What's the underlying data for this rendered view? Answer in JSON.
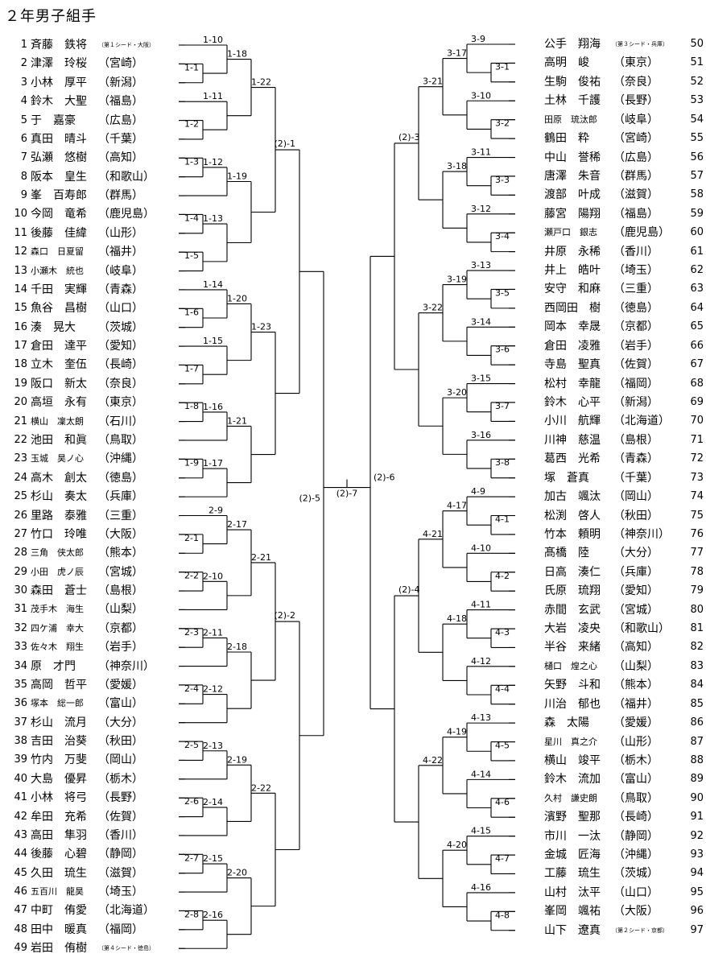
{
  "page": {
    "title": "２年男子組手"
  },
  "left_players": [
    {
      "num": "1",
      "name": "斉藤　鉄将",
      "pref": "",
      "seed": "（第１シード・大阪）"
    },
    {
      "num": "2",
      "name": "津澤　玲桜",
      "pref": "（宮崎）"
    },
    {
      "num": "3",
      "name": "小林　厚平",
      "pref": "（新潟）"
    },
    {
      "num": "4",
      "name": "鈴木　大聖",
      "pref": "（福島）"
    },
    {
      "num": "5",
      "name": "于　嘉豪",
      "pref": "（広島）"
    },
    {
      "num": "6",
      "name": "真田　晴斗",
      "pref": "（千葉）"
    },
    {
      "num": "7",
      "name": "弘瀬　悠樹",
      "pref": "（高知）"
    },
    {
      "num": "8",
      "name": "阪本　皇生",
      "pref": "（和歌山）"
    },
    {
      "num": "9",
      "name": "峯　百寿郎",
      "pref": "（群馬）"
    },
    {
      "num": "10",
      "name": "今岡　竜希",
      "pref": "（鹿児島）"
    },
    {
      "num": "11",
      "name": "後藤　佳緯",
      "pref": "（山形）"
    },
    {
      "num": "12",
      "name": "森口　日夏留",
      "pref": "（福井）",
      "small": true
    },
    {
      "num": "13",
      "name": "小瀬木　統也",
      "pref": "（岐阜）",
      "small": true
    },
    {
      "num": "14",
      "name": "千田　実輝",
      "pref": "（青森）"
    },
    {
      "num": "15",
      "name": "魚谷　昌樹",
      "pref": "（山口）"
    },
    {
      "num": "16",
      "name": "湊　晃大",
      "pref": "（茨城）"
    },
    {
      "num": "17",
      "name": "倉田　達平",
      "pref": "（愛知）"
    },
    {
      "num": "18",
      "name": "立木　奎伍",
      "pref": "（長崎）"
    },
    {
      "num": "19",
      "name": "阪口　新太",
      "pref": "（奈良）"
    },
    {
      "num": "20",
      "name": "高垣　永有",
      "pref": "（東京）"
    },
    {
      "num": "21",
      "name": "横山　凜太朗",
      "pref": "（石川）",
      "small": true
    },
    {
      "num": "22",
      "name": "池田　和眞",
      "pref": "（鳥取）"
    },
    {
      "num": "23",
      "name": "玉城　昊ノ心",
      "pref": "（沖縄）",
      "small": true
    },
    {
      "num": "24",
      "name": "高木　創太",
      "pref": "（徳島）"
    },
    {
      "num": "25",
      "name": "杉山　奏太",
      "pref": "（兵庫）"
    },
    {
      "num": "26",
      "name": "里路　泰雅",
      "pref": "（三重）"
    },
    {
      "num": "27",
      "name": "竹口　玲唯",
      "pref": "（大阪）"
    },
    {
      "num": "28",
      "name": "三角　侠太郎",
      "pref": "（熊本）",
      "small": true
    },
    {
      "num": "29",
      "name": "小田　虎ノ辰",
      "pref": "（宮城）",
      "small": true
    },
    {
      "num": "30",
      "name": "森田　蒼士",
      "pref": "（島根）"
    },
    {
      "num": "31",
      "name": "茂手木　海生",
      "pref": "（山梨）",
      "small": true
    },
    {
      "num": "32",
      "name": "四ケ浦　幸大",
      "pref": "（京都）",
      "small": true
    },
    {
      "num": "33",
      "name": "佐々木　翔生",
      "pref": "（岩手）",
      "small": true
    },
    {
      "num": "34",
      "name": "原　才門",
      "pref": "（神奈川）"
    },
    {
      "num": "35",
      "name": "高岡　哲平",
      "pref": "（愛媛）"
    },
    {
      "num": "36",
      "name": "塚本　総一郎",
      "pref": "（富山）",
      "small": true
    },
    {
      "num": "37",
      "name": "杉山　流月",
      "pref": "（大分）"
    },
    {
      "num": "38",
      "name": "吉田　治葵",
      "pref": "（秋田）"
    },
    {
      "num": "39",
      "name": "竹内　万斐",
      "pref": "（岡山）"
    },
    {
      "num": "40",
      "name": "大島　優昇",
      "pref": "（栃木）"
    },
    {
      "num": "41",
      "name": "小林　将弓",
      "pref": "（長野）"
    },
    {
      "num": "42",
      "name": "牟田　充希",
      "pref": "（佐賀）"
    },
    {
      "num": "43",
      "name": "高田　隼羽",
      "pref": "（香川）"
    },
    {
      "num": "44",
      "name": "後藤　心碧",
      "pref": "（静岡）"
    },
    {
      "num": "45",
      "name": "久田　琉生",
      "pref": "（滋賀）"
    },
    {
      "num": "46",
      "name": "五百川　龍昊",
      "pref": "（埼玉）",
      "small": true
    },
    {
      "num": "47",
      "name": "中町　侑愛",
      "pref": "（北海道）"
    },
    {
      "num": "48",
      "name": "田中　暖真",
      "pref": "（福岡）"
    },
    {
      "num": "49",
      "name": "岩田　侑樹",
      "pref": "",
      "seed": "（第４シード・徳島）"
    }
  ],
  "right_players": [
    {
      "num": "50",
      "name": "公手　翔海",
      "pref": "",
      "seed": "（第３シード・兵庫）"
    },
    {
      "num": "51",
      "name": "高明　峻",
      "pref": "（東京）"
    },
    {
      "num": "52",
      "name": "生駒　俊祐",
      "pref": "（奈良）"
    },
    {
      "num": "53",
      "name": "土林　千護",
      "pref": "（長野）"
    },
    {
      "num": "54",
      "name": "田原　琉汰郎",
      "pref": "（岐阜）",
      "small": true
    },
    {
      "num": "55",
      "name": "鶴田　粋",
      "pref": "（宮崎）"
    },
    {
      "num": "56",
      "name": "中山　誉稀",
      "pref": "（広島）"
    },
    {
      "num": "57",
      "name": "唐澤　朱音",
      "pref": "（群馬）"
    },
    {
      "num": "58",
      "name": "渡部　叶成",
      "pref": "（滋賀）"
    },
    {
      "num": "59",
      "name": "藤宮　陽翔",
      "pref": "（福島）"
    },
    {
      "num": "60",
      "name": "瀬戸口　銀志",
      "pref": "（鹿児島）",
      "small": true
    },
    {
      "num": "61",
      "name": "井原　永稀",
      "pref": "（香川）"
    },
    {
      "num": "62",
      "name": "井上　皓叶",
      "pref": "（埼玉）"
    },
    {
      "num": "63",
      "name": "安守　和麻",
      "pref": "（三重）"
    },
    {
      "num": "64",
      "name": "西岡田　樹",
      "pref": "（徳島）"
    },
    {
      "num": "65",
      "name": "岡本　幸晟",
      "pref": "（京都）"
    },
    {
      "num": "66",
      "name": "倉田　凌雅",
      "pref": "（岩手）"
    },
    {
      "num": "67",
      "name": "寺島　聖真",
      "pref": "（佐賀）"
    },
    {
      "num": "68",
      "name": "松村　幸龍",
      "pref": "（福岡）"
    },
    {
      "num": "69",
      "name": "鈴木　心平",
      "pref": "（新潟）"
    },
    {
      "num": "70",
      "name": "小川　航輝",
      "pref": "（北海道）"
    },
    {
      "num": "71",
      "name": "川神　慈温",
      "pref": "（島根）"
    },
    {
      "num": "72",
      "name": "葛西　光希",
      "pref": "（青森）"
    },
    {
      "num": "73",
      "name": "塚　蒼真",
      "pref": "（千葉）"
    },
    {
      "num": "74",
      "name": "加古　颯汰",
      "pref": "（岡山）"
    },
    {
      "num": "75",
      "name": "松渕　啓人",
      "pref": "（秋田）"
    },
    {
      "num": "76",
      "name": "竹本　頼明",
      "pref": "（神奈川）"
    },
    {
      "num": "77",
      "name": "髙橋　陸",
      "pref": "（大分）"
    },
    {
      "num": "78",
      "name": "日高　湊仁",
      "pref": "（兵庫）"
    },
    {
      "num": "79",
      "name": "氏原　琉翔",
      "pref": "（愛知）"
    },
    {
      "num": "80",
      "name": "赤間　玄武",
      "pref": "（宮城）"
    },
    {
      "num": "81",
      "name": "大岩　凌央",
      "pref": "（和歌山）"
    },
    {
      "num": "82",
      "name": "半谷　来緒",
      "pref": "（高知）"
    },
    {
      "num": "83",
      "name": "樋口　煌之心",
      "pref": "（山梨）",
      "small": true
    },
    {
      "num": "84",
      "name": "矢野　斗和",
      "pref": "（熊本）"
    },
    {
      "num": "85",
      "name": "川治　郁也",
      "pref": "（福井）"
    },
    {
      "num": "86",
      "name": "森　太陽",
      "pref": "（愛媛）"
    },
    {
      "num": "87",
      "name": "星川　真之介",
      "pref": "（山形）",
      "small": true
    },
    {
      "num": "88",
      "name": "横山　竣平",
      "pref": "（栃木）"
    },
    {
      "num": "89",
      "name": "鈴木　流加",
      "pref": "（富山）"
    },
    {
      "num": "90",
      "name": "久村　謙史朗",
      "pref": "（鳥取）",
      "small": true
    },
    {
      "num": "91",
      "name": "濱野　聖那",
      "pref": "（長崎）"
    },
    {
      "num": "92",
      "name": "市川　一汰",
      "pref": "（静岡）"
    },
    {
      "num": "93",
      "name": "金城　匠海",
      "pref": "（沖縄）"
    },
    {
      "num": "94",
      "name": "工藤　琉生",
      "pref": "（茨城）"
    },
    {
      "num": "95",
      "name": "山村　汰平",
      "pref": "（山口）"
    },
    {
      "num": "96",
      "name": "峯岡　颯祐",
      "pref": "（大阪）"
    },
    {
      "num": "97",
      "name": "山下　遼真",
      "pref": "",
      "seed": "（第２シード・京都）"
    }
  ],
  "brackets": {
    "top_left": {
      "r1": [
        "1-1",
        "1-2",
        "1-3",
        "1-4",
        "1-5",
        "1-6",
        "1-7",
        "1-8",
        "1-9"
      ],
      "r2": [
        "1-10",
        "1-11",
        "1-12",
        "1-13",
        "1-14",
        "1-15",
        "1-16",
        "1-17"
      ],
      "r3": [
        "1-18",
        "1-19",
        "1-20",
        "1-21"
      ],
      "r4": [
        "1-22",
        "1-23"
      ],
      "r5": "(2)-1"
    },
    "bottom_left": {
      "r1": [
        "2-1",
        "2-2",
        "2-3",
        "2-4",
        "2-5",
        "2-6",
        "2-7",
        "2-8"
      ],
      "r2": [
        "2-9",
        "2-10",
        "2-11",
        "2-12",
        "2-13",
        "2-14",
        "2-15",
        "2-16"
      ],
      "r3": [
        "2-17",
        "2-18",
        "2-19",
        "2-20"
      ],
      "r4": [
        "2-21",
        "2-22"
      ],
      "r5": "(2)-2"
    },
    "top_right": {
      "r1": [
        "3-1",
        "3-2",
        "3-3",
        "3-4",
        "3-5",
        "3-6",
        "3-7",
        "3-8"
      ],
      "r2": [
        "3-9",
        "3-10",
        "3-11",
        "3-12",
        "3-13",
        "3-14",
        "3-15",
        "3-16"
      ],
      "r3": [
        "3-17",
        "3-18",
        "3-19",
        "3-20"
      ],
      "r4": [
        "3-21",
        "3-22"
      ],
      "r5": "(2)-3"
    },
    "bottom_right": {
      "r1": [
        "4-1",
        "4-2",
        "4-3",
        "4-4",
        "4-5",
        "4-6",
        "4-7",
        "4-8"
      ],
      "r2": [
        "4-9",
        "4-10",
        "4-11",
        "4-12",
        "4-13",
        "4-14",
        "4-15",
        "4-16"
      ],
      "r3": [
        "4-17",
        "4-18",
        "4-19",
        "4-20"
      ],
      "r4": [
        "4-21",
        "4-22"
      ],
      "r5": "(2)-4"
    },
    "semi_left": "(2)-5",
    "semi_right": "(2)-6",
    "final": "(2)-7"
  }
}
